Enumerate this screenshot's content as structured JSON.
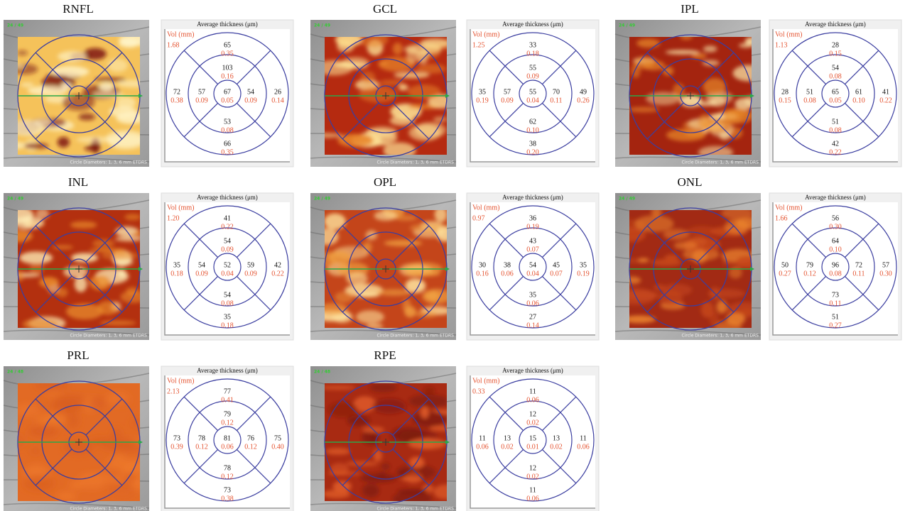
{
  "grid_title": "Average thickness (μm)",
  "vol_label": "Vol (mm)",
  "image_caption": "Circle Diameters: 1, 3, 6 mm ETDRS",
  "panels": [
    {
      "label": "RNFL",
      "image_id": "24 / 49",
      "vol": "1.68",
      "sectors": [
        {
          "thickness": 65,
          "volume": "0.35"
        },
        {
          "thickness": 103,
          "volume": "0.16"
        },
        {
          "thickness": 72,
          "volume": "0.38"
        },
        {
          "thickness": 57,
          "volume": "0.09"
        },
        {
          "thickness": 67,
          "volume": "0.05"
        },
        {
          "thickness": 54,
          "volume": "0.09"
        },
        {
          "thickness": 26,
          "volume": "0.14"
        },
        {
          "thickness": 53,
          "volume": "0.08"
        },
        {
          "thickness": 66,
          "volume": "0.35"
        }
      ]
    },
    {
      "label": "GCL",
      "image_id": "24 / 49",
      "vol": "1.25",
      "sectors": [
        {
          "thickness": 33,
          "volume": "0.18"
        },
        {
          "thickness": 55,
          "volume": "0.09"
        },
        {
          "thickness": 35,
          "volume": "0.19"
        },
        {
          "thickness": 57,
          "volume": "0.09"
        },
        {
          "thickness": 55,
          "volume": "0.04"
        },
        {
          "thickness": 70,
          "volume": "0.11"
        },
        {
          "thickness": 49,
          "volume": "0.26"
        },
        {
          "thickness": 62,
          "volume": "0.10"
        },
        {
          "thickness": 38,
          "volume": "0.20"
        }
      ]
    },
    {
      "label": "IPL",
      "image_id": "24 / 49",
      "vol": "1.13",
      "sectors": [
        {
          "thickness": 28,
          "volume": "0.15"
        },
        {
          "thickness": 54,
          "volume": "0.08"
        },
        {
          "thickness": 28,
          "volume": "0.15"
        },
        {
          "thickness": 51,
          "volume": "0.08"
        },
        {
          "thickness": 65,
          "volume": "0.05"
        },
        {
          "thickness": 61,
          "volume": "0.10"
        },
        {
          "thickness": 41,
          "volume": "0.22"
        },
        {
          "thickness": 51,
          "volume": "0.08"
        },
        {
          "thickness": 42,
          "volume": "0.22"
        }
      ]
    },
    {
      "label": "INL",
      "image_id": "24 / 49",
      "vol": "1.20",
      "sectors": [
        {
          "thickness": 41,
          "volume": "0.22"
        },
        {
          "thickness": 54,
          "volume": "0.09"
        },
        {
          "thickness": 35,
          "volume": "0.18"
        },
        {
          "thickness": 54,
          "volume": "0.09"
        },
        {
          "thickness": 52,
          "volume": "0.04"
        },
        {
          "thickness": 59,
          "volume": "0.09"
        },
        {
          "thickness": 42,
          "volume": "0.22"
        },
        {
          "thickness": 54,
          "volume": "0.08"
        },
        {
          "thickness": 35,
          "volume": "0.18"
        }
      ]
    },
    {
      "label": "OPL",
      "image_id": "24 / 49",
      "vol": "0.97",
      "sectors": [
        {
          "thickness": 36,
          "volume": "0.19"
        },
        {
          "thickness": 43,
          "volume": "0.07"
        },
        {
          "thickness": 30,
          "volume": "0.16"
        },
        {
          "thickness": 38,
          "volume": "0.06"
        },
        {
          "thickness": 54,
          "volume": "0.04"
        },
        {
          "thickness": 45,
          "volume": "0.07"
        },
        {
          "thickness": 35,
          "volume": "0.19"
        },
        {
          "thickness": 35,
          "volume": "0.06"
        },
        {
          "thickness": 27,
          "volume": "0.14"
        }
      ]
    },
    {
      "label": "ONL",
      "image_id": "24 / 49",
      "vol": "1.66",
      "sectors": [
        {
          "thickness": 56,
          "volume": "0.30"
        },
        {
          "thickness": 64,
          "volume": "0.10"
        },
        {
          "thickness": 50,
          "volume": "0.27"
        },
        {
          "thickness": 79,
          "volume": "0.12"
        },
        {
          "thickness": 96,
          "volume": "0.08"
        },
        {
          "thickness": 72,
          "volume": "0.11"
        },
        {
          "thickness": 57,
          "volume": "0.30"
        },
        {
          "thickness": 73,
          "volume": "0.11"
        },
        {
          "thickness": 51,
          "volume": "0.27"
        }
      ]
    },
    {
      "label": "PRL",
      "image_id": "24 / 48",
      "vol": "2.13",
      "sectors": [
        {
          "thickness": 77,
          "volume": "0.41"
        },
        {
          "thickness": 79,
          "volume": "0.12"
        },
        {
          "thickness": 73,
          "volume": "0.39"
        },
        {
          "thickness": 78,
          "volume": "0.12"
        },
        {
          "thickness": 81,
          "volume": "0.06"
        },
        {
          "thickness": 76,
          "volume": "0.12"
        },
        {
          "thickness": 75,
          "volume": "0.40"
        },
        {
          "thickness": 78,
          "volume": "0.12"
        },
        {
          "thickness": 73,
          "volume": "0.38"
        }
      ]
    },
    {
      "label": "RPE",
      "image_id": "24 / 48",
      "vol": "0.33",
      "sectors": [
        {
          "thickness": 11,
          "volume": "0.06"
        },
        {
          "thickness": 12,
          "volume": "0.02"
        },
        {
          "thickness": 11,
          "volume": "0.06"
        },
        {
          "thickness": 13,
          "volume": "0.02"
        },
        {
          "thickness": 15,
          "volume": "0.01"
        },
        {
          "thickness": 13,
          "volume": "0.02"
        },
        {
          "thickness": 11,
          "volume": "0.06"
        },
        {
          "thickness": 12,
          "volume": "0.02"
        },
        {
          "thickness": 11,
          "volume": "0.06"
        }
      ]
    }
  ]
}
